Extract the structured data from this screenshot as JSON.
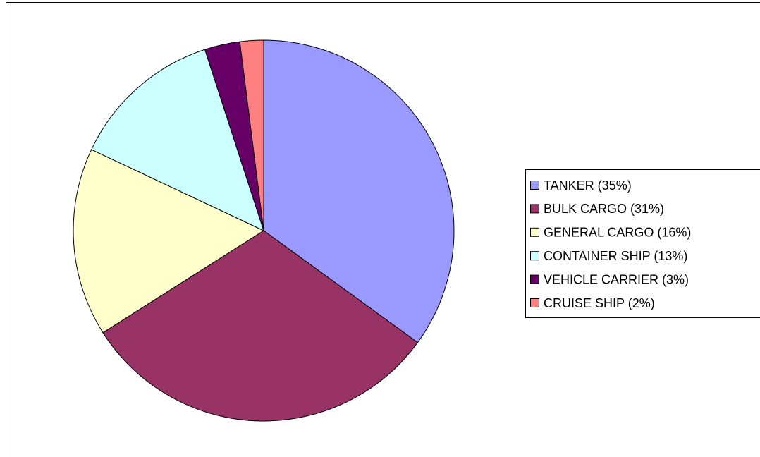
{
  "chart_data": {
    "type": "pie",
    "categories": [
      "TANKER (35%)",
      "BULK CARGO (31%)",
      "GENERAL CARGO (16%)",
      "CONTAINER SHIP (13%)",
      "VEHICLE CARRIER (3%)",
      "CRUISE SHIP (2%)"
    ],
    "values": [
      35,
      31,
      16,
      13,
      3,
      2
    ],
    "colors": [
      "#9999ff",
      "#993366",
      "#ffffcc",
      "#ccffff",
      "#660066",
      "#ff8080"
    ],
    "legend": "right"
  }
}
